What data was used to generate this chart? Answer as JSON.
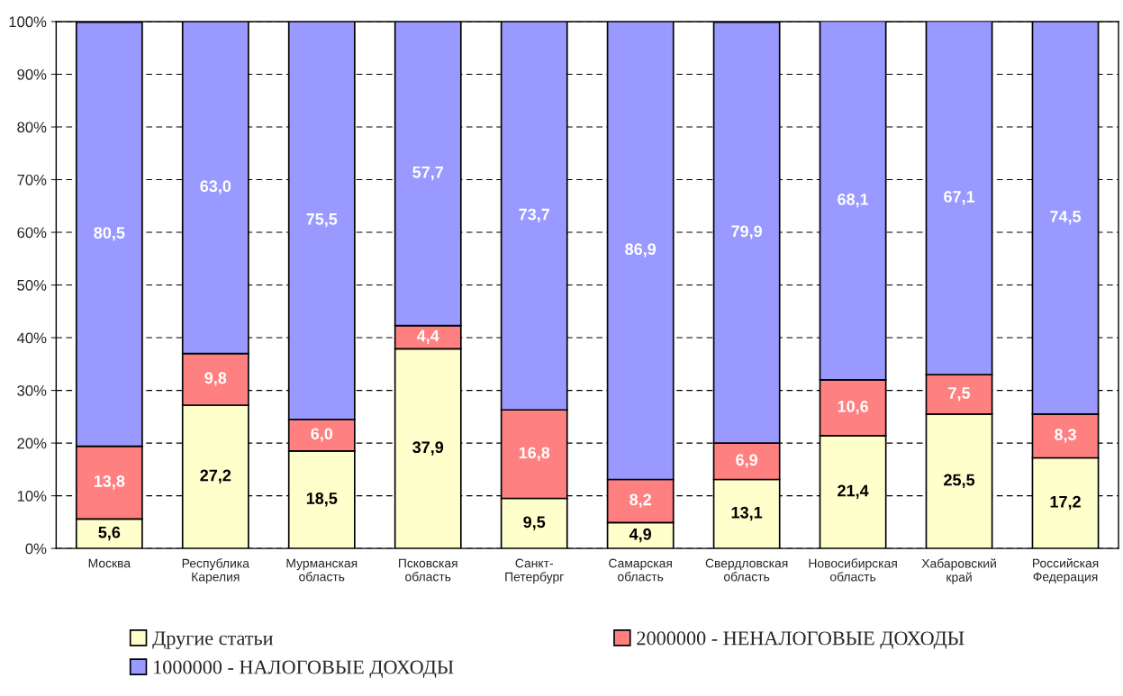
{
  "chart_data": {
    "type": "bar",
    "stacked": true,
    "categories": [
      "Москва",
      "Республика\nКарелия",
      "Мурманская\nобласть",
      "Псковская\nобласть",
      "Санкт-\nПетербург",
      "Самарская\nобласть",
      "Свердловская\nобласть",
      "Новосибирская\nобласть",
      "Хабаровский\nкрай",
      "Российская\nФедерация"
    ],
    "series": [
      {
        "name": "Другие статьи",
        "color": "#ffffcc",
        "values": [
          5.6,
          27.2,
          18.5,
          37.9,
          9.5,
          4.9,
          13.1,
          21.4,
          25.5,
          17.2
        ],
        "value_labels": [
          "5,6",
          "27,2",
          "18,5",
          "37,9",
          "9,5",
          "4,9",
          "13,1",
          "21,4",
          "25,5",
          "17,2"
        ]
      },
      {
        "name": "2000000 - НЕНАЛОГОВЫЕ ДОХОДЫ",
        "color": "#ff8080",
        "values": [
          13.8,
          9.8,
          6.0,
          4.4,
          16.8,
          8.2,
          6.9,
          10.6,
          7.5,
          8.3
        ],
        "value_labels": [
          "13,8",
          "9,8",
          "6,0",
          "4,4",
          "16,8",
          "8,2",
          "6,9",
          "10,6",
          "7,5",
          "8,3"
        ]
      },
      {
        "name": "1000000 - НАЛОГОВЫЕ ДОХОДЫ",
        "color": "#9999ff",
        "values": [
          80.5,
          63.0,
          75.5,
          57.7,
          73.7,
          86.9,
          79.9,
          68.1,
          67.1,
          74.5
        ],
        "value_labels": [
          "80,5",
          "63,0",
          "75,5",
          "57,7",
          "73,7",
          "86,9",
          "79,9",
          "68,1",
          "67,1",
          "74,5"
        ]
      }
    ],
    "ylim": [
      0,
      100
    ],
    "yticks": [
      {
        "value": 0,
        "label": "0%"
      },
      {
        "value": 10,
        "label": "10%"
      },
      {
        "value": 20,
        "label": "20%"
      },
      {
        "value": 30,
        "label": "30%"
      },
      {
        "value": 40,
        "label": "40%"
      },
      {
        "value": 50,
        "label": "50%"
      },
      {
        "value": 60,
        "label": "60%"
      },
      {
        "value": 70,
        "label": "70%"
      },
      {
        "value": 80,
        "label": "80%"
      },
      {
        "value": 90,
        "label": "90%"
      },
      {
        "value": 100,
        "label": "100%"
      }
    ],
    "grid": "y",
    "legend": "bottom"
  }
}
